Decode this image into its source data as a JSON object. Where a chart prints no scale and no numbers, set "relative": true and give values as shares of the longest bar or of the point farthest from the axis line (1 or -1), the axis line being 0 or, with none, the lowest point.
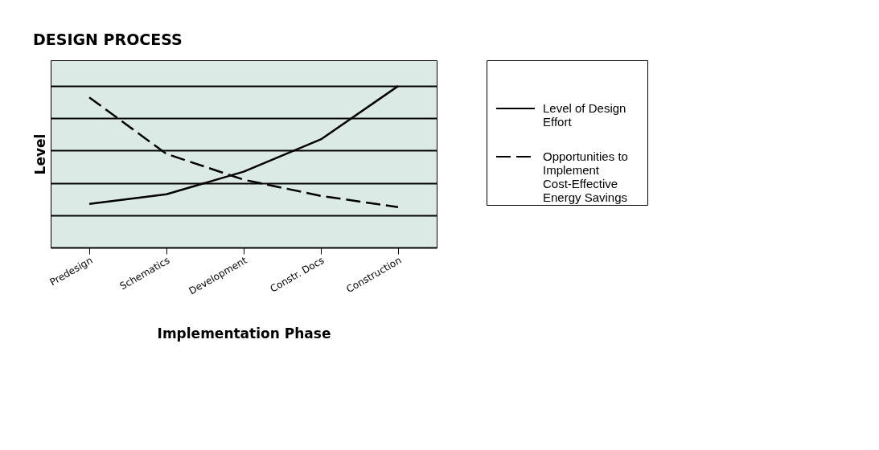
{
  "chart_data": {
    "type": "line",
    "title": "DESIGN PROCESS",
    "xlabel": "Implementation Phase",
    "ylabel": "Level",
    "relative": true,
    "grid": "y",
    "legend": "right",
    "marker": "none",
    "categories": [
      "Predesign",
      "Schematics",
      "Development",
      "Constr. Docs",
      "Construction"
    ],
    "series": [
      {
        "name": "Level of Design Effort",
        "color": "#000000",
        "line_style": "solid",
        "values": [
          0.27,
          0.33,
          0.47,
          0.67,
          1.0
        ]
      },
      {
        "name": "Opportunities to Implement Cost-Effective Energy Savings",
        "color": "#000000",
        "line_style": "dashed",
        "values": [
          0.93,
          0.58,
          0.42,
          0.32,
          0.25
        ]
      }
    ]
  }
}
